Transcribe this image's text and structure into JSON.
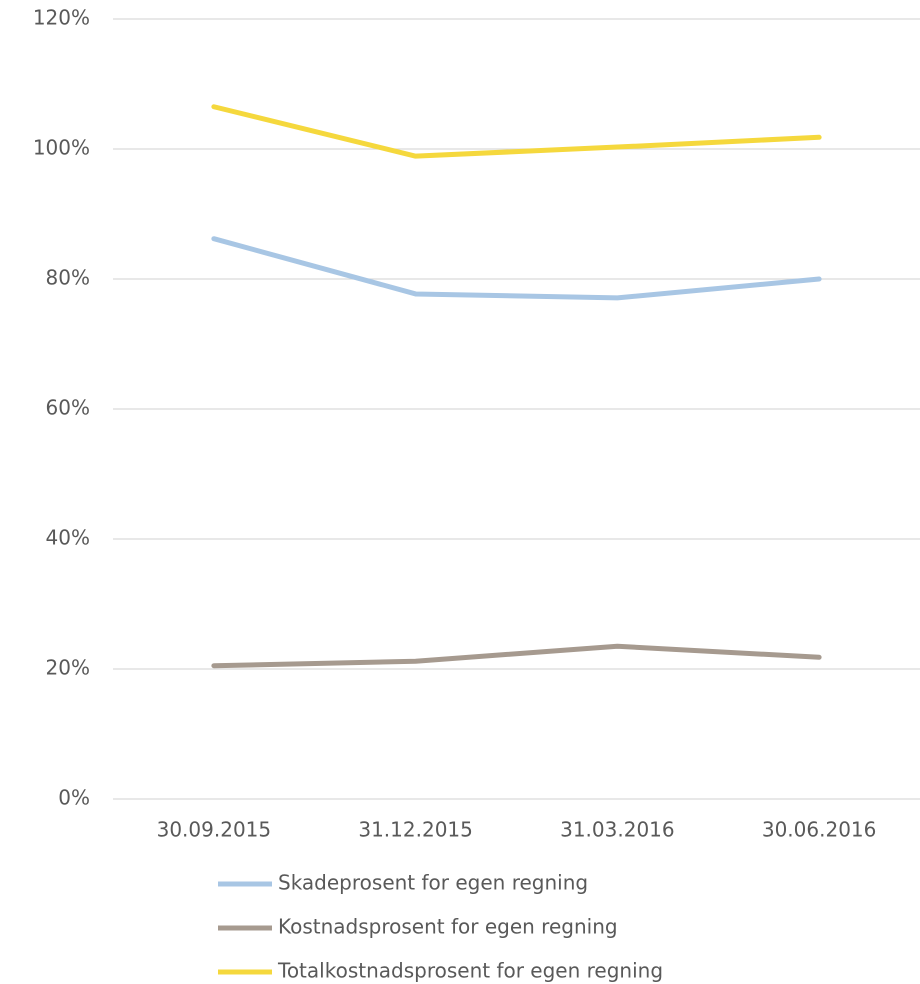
{
  "chart_data": {
    "type": "line",
    "categories": [
      "30.09.2015",
      "31.12.2015",
      "31.03.2016",
      "30.06.2016"
    ],
    "series": [
      {
        "name": "Skadeprosent for egen regning",
        "color": "#a8c6e4",
        "values": [
          86.2,
          77.7,
          77.1,
          80.0
        ]
      },
      {
        "name": "Kostnadsprosent for egen regning",
        "color": "#a69a8f",
        "values": [
          20.5,
          21.2,
          23.5,
          21.8
        ]
      },
      {
        "name": "Totalkostnadsprosent for egen regning",
        "color": "#f5d83d",
        "values": [
          106.5,
          98.9,
          100.3,
          101.8
        ]
      }
    ],
    "ylim": [
      0,
      120
    ],
    "yticks": [
      {
        "value": 0,
        "label": "0%"
      },
      {
        "value": 20,
        "label": "20%"
      },
      {
        "value": 40,
        "label": "40%"
      },
      {
        "value": 60,
        "label": "60%"
      },
      {
        "value": 80,
        "label": "80%"
      },
      {
        "value": 100,
        "label": "100%"
      },
      {
        "value": 120,
        "label": "120%"
      }
    ],
    "grid": true,
    "legend": "bottom"
  }
}
